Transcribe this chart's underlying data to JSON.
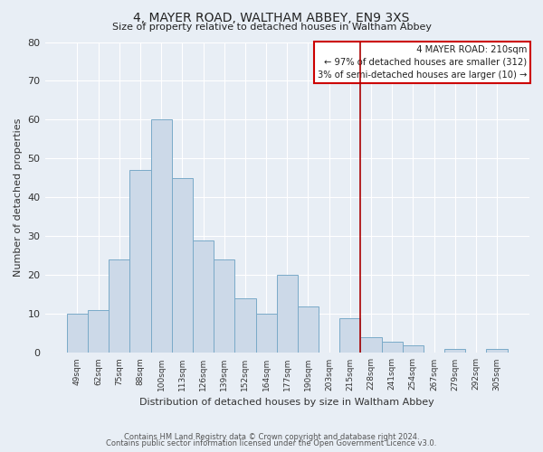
{
  "title": "4, MAYER ROAD, WALTHAM ABBEY, EN9 3XS",
  "subtitle": "Size of property relative to detached houses in Waltham Abbey",
  "xlabel": "Distribution of detached houses by size in Waltham Abbey",
  "ylabel": "Number of detached properties",
  "bar_labels": [
    "49sqm",
    "62sqm",
    "75sqm",
    "88sqm",
    "100sqm",
    "113sqm",
    "126sqm",
    "139sqm",
    "152sqm",
    "164sqm",
    "177sqm",
    "190sqm",
    "203sqm",
    "215sqm",
    "228sqm",
    "241sqm",
    "254sqm",
    "267sqm",
    "279sqm",
    "292sqm",
    "305sqm"
  ],
  "bar_values": [
    10,
    11,
    24,
    47,
    60,
    45,
    29,
    24,
    14,
    10,
    20,
    12,
    0,
    9,
    4,
    3,
    2,
    0,
    1,
    0,
    1
  ],
  "bar_color": "#ccd9e8",
  "bar_edge_color": "#7aaac8",
  "ylim": [
    0,
    80
  ],
  "yticks": [
    0,
    10,
    20,
    30,
    40,
    50,
    60,
    70,
    80
  ],
  "vline_x": 13.5,
  "vline_color": "#aa0000",
  "annotation_title": "4 MAYER ROAD: 210sqm",
  "annotation_line1": "← 97% of detached houses are smaller (312)",
  "annotation_line2": "3% of semi-detached houses are larger (10) →",
  "annotation_box_facecolor": "#ffffff",
  "annotation_box_edgecolor": "#cc0000",
  "bg_color": "#e8eef5",
  "grid_color": "#ffffff",
  "title_color": "#222222",
  "label_color": "#333333",
  "footer1": "Contains HM Land Registry data © Crown copyright and database right 2024.",
  "footer2": "Contains public sector information licensed under the Open Government Licence v3.0."
}
